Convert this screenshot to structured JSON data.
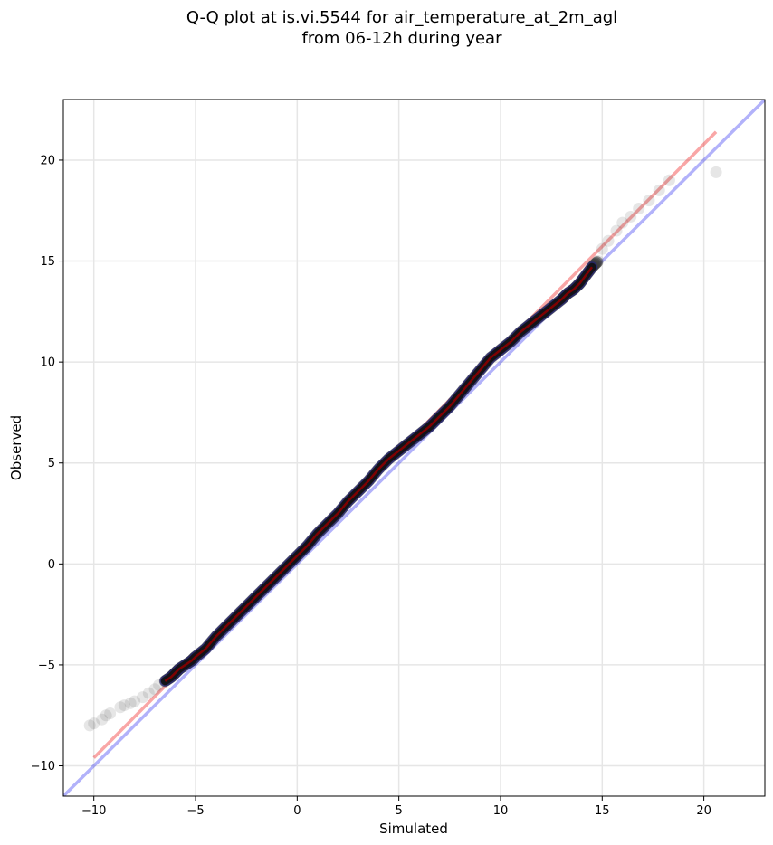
{
  "chart_data": {
    "type": "scatter",
    "title": "Q-Q plot at is.vi.5544 for air_temperature_at_2m_agl",
    "subtitle": "from 06-12h during year",
    "xlabel": "Simulated",
    "ylabel": "Observed",
    "xlim": [
      -11.5,
      23
    ],
    "ylim": [
      -11.5,
      23
    ],
    "x_ticks": [
      -10,
      -5,
      0,
      5,
      10,
      15,
      20
    ],
    "y_ticks": [
      -10,
      -5,
      0,
      5,
      10,
      15,
      20
    ],
    "x_tick_labels": [
      "−10",
      "−5",
      "0",
      "5",
      "10",
      "15",
      "20"
    ],
    "y_tick_labels": [
      "−10",
      "−5",
      "0",
      "5",
      "10",
      "15",
      "20"
    ],
    "grid": true,
    "quantiles": {
      "x": [
        -10.2,
        -10.0,
        -9.6,
        -9.4,
        -9.2,
        -8.7,
        -8.5,
        -8.2,
        -8.0,
        -7.6,
        -7.3,
        -7.0,
        -6.8,
        -6.5,
        -6.2,
        -6.0,
        -5.8,
        -5.5,
        -5.2,
        -5.0,
        -4.5,
        -4.0,
        -3.5,
        -3.0,
        -2.5,
        -2.0,
        -1.5,
        -1.0,
        -0.5,
        0.0,
        0.5,
        1.0,
        1.5,
        2.0,
        2.5,
        3.0,
        3.5,
        4.0,
        4.5,
        5.0,
        5.5,
        6.0,
        6.5,
        7.0,
        7.5,
        8.0,
        8.5,
        9.0,
        9.5,
        10.0,
        10.5,
        11.0,
        11.5,
        12.0,
        12.5,
        13.0,
        13.3,
        13.6,
        13.9,
        14.2,
        14.5,
        14.8,
        15.0,
        15.3,
        15.7,
        16.0,
        16.4,
        16.8,
        17.3,
        17.8,
        18.3,
        20.6
      ],
      "y": [
        -8.0,
        -7.9,
        -7.7,
        -7.5,
        -7.4,
        -7.1,
        -7.0,
        -6.9,
        -6.8,
        -6.6,
        -6.4,
        -6.2,
        -6.0,
        -5.8,
        -5.6,
        -5.4,
        -5.2,
        -5.0,
        -4.8,
        -4.6,
        -4.2,
        -3.6,
        -3.1,
        -2.6,
        -2.1,
        -1.6,
        -1.1,
        -0.6,
        -0.1,
        0.4,
        0.9,
        1.5,
        2.0,
        2.5,
        3.1,
        3.6,
        4.1,
        4.7,
        5.2,
        5.6,
        6.0,
        6.4,
        6.8,
        7.3,
        7.8,
        8.4,
        9.0,
        9.6,
        10.2,
        10.6,
        11.0,
        11.5,
        11.9,
        12.3,
        12.7,
        13.1,
        13.4,
        13.6,
        13.9,
        14.3,
        14.7,
        15.0,
        15.6,
        16.0,
        16.5,
        16.9,
        17.2,
        17.6,
        18.0,
        18.5,
        19.0,
        19.4
      ]
    },
    "reference_line": {
      "name": "1:1",
      "color": "#0000ee",
      "opacity": 0.3,
      "x": [
        -11.5,
        23
      ],
      "y": [
        -11.5,
        23
      ]
    },
    "fit_line": {
      "color": "#ee0000",
      "opacity": 0.35,
      "x": [
        -10.0,
        20.6
      ],
      "y": [
        -9.6,
        21.4
      ]
    },
    "colors": {
      "points": "#3a3a3a",
      "core_line": "#8b0000",
      "core_edge": "#1a1a8a"
    }
  }
}
